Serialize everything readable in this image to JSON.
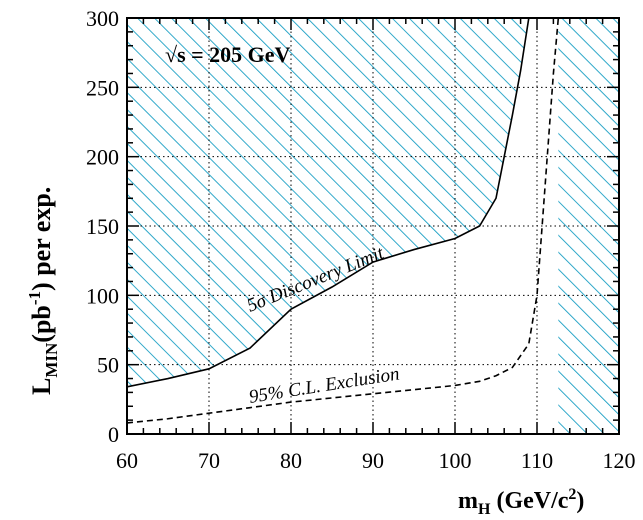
{
  "chart_data": {
    "type": "line",
    "energy_label": "√s = 205 GeV",
    "xlabel": {
      "main": "m",
      "sub": "H",
      "rest": " (GeV/c",
      "sup": "2",
      "end": ")"
    },
    "ylabel": {
      "main": "L",
      "sub": "MIN",
      "mid": "(pb",
      "sup": "-1",
      "end": ") per exp."
    },
    "xlim": [
      60,
      120
    ],
    "ylim": [
      0,
      300
    ],
    "x_ticks": [
      "60",
      "70",
      "80",
      "90",
      "100",
      "110",
      "120"
    ],
    "y_ticks": [
      "0",
      "50",
      "100",
      "150",
      "200",
      "250",
      "300"
    ],
    "grid": true,
    "hatch_color": "#1a9fc4",
    "series": [
      {
        "label": "5σ Discovery Limit",
        "style": "solid",
        "points": [
          [
            60,
            34
          ],
          [
            65,
            40
          ],
          [
            70,
            47
          ],
          [
            75,
            62
          ],
          [
            80,
            90
          ],
          [
            85,
            106
          ],
          [
            90,
            124
          ],
          [
            95,
            133
          ],
          [
            100,
            141
          ],
          [
            103,
            150
          ],
          [
            105,
            170
          ],
          [
            106,
            200
          ],
          [
            107,
            230
          ],
          [
            108,
            262
          ],
          [
            109,
            300
          ]
        ]
      },
      {
        "label": "95% C.L. Exclusion",
        "style": "dashed",
        "points": [
          [
            60,
            8
          ],
          [
            65,
            11
          ],
          [
            70,
            15
          ],
          [
            75,
            19
          ],
          [
            80,
            23
          ],
          [
            85,
            26
          ],
          [
            90,
            29
          ],
          [
            95,
            32
          ],
          [
            100,
            35
          ],
          [
            103,
            38
          ],
          [
            105,
            42
          ],
          [
            107,
            48
          ],
          [
            109,
            65
          ],
          [
            110,
            100
          ],
          [
            111,
            180
          ],
          [
            112,
            260
          ],
          [
            112.6,
            300
          ]
        ]
      }
    ]
  }
}
